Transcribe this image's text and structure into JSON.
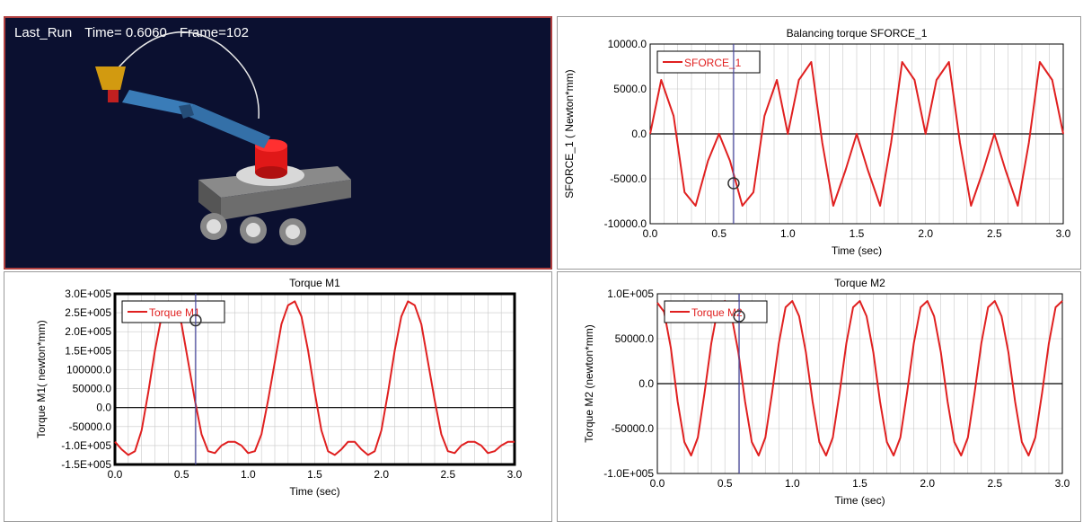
{
  "animation": {
    "run_name": "Last_Run",
    "time_text": "Time= 0.6060",
    "frame_text": "Frame=102",
    "background": "#0b1030"
  },
  "colors": {
    "series": "#e02020",
    "cursor": "#4a4aa0",
    "grid": "#c8c8c8"
  },
  "chart_data": [
    {
      "id": "sforce",
      "type": "line",
      "title": "Balancing torque  SFORCE_1",
      "xlabel": "Time (sec)",
      "ylabel": "SFORCE_1  ( Newton*mm)",
      "xlim": [
        0,
        3.0
      ],
      "ylim": [
        -10000,
        10000
      ],
      "xticks": [
        "0.0",
        "0.5",
        "1.0",
        "1.5",
        "2.0",
        "2.5",
        "3.0"
      ],
      "xtick_values": [
        0,
        0.5,
        1.0,
        1.5,
        2.0,
        2.5,
        3.0
      ],
      "yticks": [
        "10000.0",
        "5000.0",
        "0.0",
        "-5000.0",
        "-10000.0"
      ],
      "ytick_values": [
        10000,
        5000,
        0,
        -5000,
        -10000
      ],
      "legend": "SFORCE_1",
      "legend_position": "top-left",
      "grid": true,
      "cursor_x": 0.606,
      "cursor_y": -5500,
      "series": [
        {
          "name": "SFORCE_1",
          "x": [
            0.0,
            0.08,
            0.17,
            0.25,
            0.33,
            0.42,
            0.5,
            0.58,
            0.67,
            0.75,
            0.83,
            0.92,
            1.0,
            1.08,
            1.17,
            1.25,
            1.33,
            1.42,
            1.5,
            1.58,
            1.67,
            1.75,
            1.83,
            1.92,
            2.0,
            2.08,
            2.17,
            2.25,
            2.33,
            2.42,
            2.5,
            2.58,
            2.67,
            2.75,
            2.83,
            2.92,
            3.0
          ],
          "y": [
            0,
            6000,
            2000,
            -6500,
            -8000,
            -3000,
            0,
            -3000,
            -8000,
            -6500,
            2000,
            6000,
            0,
            6000,
            8000,
            -1000,
            -8000,
            -4000,
            0,
            -4000,
            -8000,
            -1000,
            8000,
            6000,
            0,
            6000,
            8000,
            -1000,
            -8000,
            -4000,
            0,
            -4000,
            -8000,
            -1000,
            8000,
            6000,
            0
          ]
        }
      ]
    },
    {
      "id": "m1",
      "type": "line",
      "title": "Torque M1",
      "xlabel": "Time (sec)",
      "ylabel": "Torque M1( newton*mm)",
      "xlim": [
        0,
        3.0
      ],
      "ylim": [
        -150000,
        300000
      ],
      "xticks": [
        "0.0",
        "0.5",
        "1.0",
        "1.5",
        "2.0",
        "2.5",
        "3.0"
      ],
      "xtick_values": [
        0,
        0.5,
        1.0,
        1.5,
        2.0,
        2.5,
        3.0
      ],
      "yticks": [
        "3.0E+005",
        "2.5E+005",
        "2.0E+005",
        "1.5E+005",
        "100000.0",
        "50000.0",
        "0.0",
        "-50000.0",
        "-1.0E+005",
        "-1.5E+005"
      ],
      "ytick_values": [
        300000,
        250000,
        200000,
        150000,
        100000,
        50000,
        0,
        -50000,
        -100000,
        -150000
      ],
      "legend": "Torque M1",
      "legend_position": "top-left",
      "grid": true,
      "cursor_x": 0.606,
      "cursor_y": 230000,
      "series": [
        {
          "name": "Torque M1",
          "x": [
            0.0,
            0.05,
            0.1,
            0.15,
            0.2,
            0.25,
            0.3,
            0.35,
            0.4,
            0.45,
            0.5,
            0.55,
            0.6,
            0.65,
            0.7,
            0.75,
            0.8,
            0.85,
            0.9,
            0.95,
            1.0,
            1.05,
            1.1,
            1.15,
            1.2,
            1.25,
            1.3,
            1.35,
            1.4,
            1.45,
            1.5,
            1.55,
            1.6,
            1.65,
            1.7,
            1.75,
            1.8,
            1.85,
            1.9,
            1.95,
            2.0,
            2.05,
            2.1,
            2.15,
            2.2,
            2.25,
            2.3,
            2.35,
            2.4,
            2.45,
            2.5,
            2.55,
            2.6,
            2.65,
            2.7,
            2.75,
            2.8,
            2.85,
            2.9,
            2.95,
            3.0
          ],
          "y": [
            -90000,
            -110000,
            -125000,
            -115000,
            -60000,
            40000,
            150000,
            240000,
            280000,
            270000,
            220000,
            120000,
            20000,
            -70000,
            -115000,
            -120000,
            -100000,
            -90000,
            -90000,
            -100000,
            -120000,
            -115000,
            -70000,
            20000,
            120000,
            220000,
            270000,
            280000,
            240000,
            150000,
            40000,
            -60000,
            -115000,
            -125000,
            -110000,
            -90000,
            -90000,
            -110000,
            -125000,
            -115000,
            -60000,
            40000,
            150000,
            240000,
            280000,
            270000,
            220000,
            120000,
            20000,
            -70000,
            -115000,
            -120000,
            -100000,
            -90000,
            -90000,
            -100000,
            -120000,
            -115000,
            -100000,
            -90000,
            -90000
          ]
        }
      ]
    },
    {
      "id": "m2",
      "type": "line",
      "title": "Torque M2",
      "xlabel": "Time (sec)",
      "ylabel": "Torque M2 (newton*mm)",
      "xlim": [
        0,
        3.0
      ],
      "ylim": [
        -100000,
        100000
      ],
      "xticks": [
        "0.0",
        "0.5",
        "1.0",
        "1.5",
        "2.0",
        "2.5",
        "3.0"
      ],
      "xtick_values": [
        0,
        0.5,
        1.0,
        1.5,
        2.0,
        2.5,
        3.0
      ],
      "yticks": [
        "1.0E+005",
        "50000.0",
        "0.0",
        "-50000.0",
        "-1.0E+005"
      ],
      "ytick_values": [
        100000,
        50000,
        0,
        -50000,
        -100000
      ],
      "legend": "Torque M2",
      "legend_position": "top-left",
      "grid": true,
      "cursor_x": 0.606,
      "cursor_y": 75000,
      "series": [
        {
          "name": "Torque M2",
          "x": [
            0.0,
            0.05,
            0.1,
            0.15,
            0.2,
            0.25,
            0.3,
            0.35,
            0.4,
            0.45,
            0.5,
            0.55,
            0.6,
            0.65,
            0.7,
            0.75,
            0.8,
            0.85,
            0.9,
            0.95,
            1.0,
            1.05,
            1.1,
            1.15,
            1.2,
            1.25,
            1.3,
            1.35,
            1.4,
            1.45,
            1.5,
            1.55,
            1.6,
            1.65,
            1.7,
            1.75,
            1.8,
            1.85,
            1.9,
            1.95,
            2.0,
            2.05,
            2.1,
            2.15,
            2.2,
            2.25,
            2.3,
            2.35,
            2.4,
            2.45,
            2.5,
            2.55,
            2.6,
            2.65,
            2.7,
            2.75,
            2.8,
            2.85,
            2.9,
            2.95,
            3.0
          ],
          "y": [
            90000,
            80000,
            40000,
            -20000,
            -65000,
            -80000,
            -60000,
            -10000,
            45000,
            85000,
            92000,
            75000,
            35000,
            -20000,
            -65000,
            -80000,
            -60000,
            -10000,
            45000,
            85000,
            92000,
            75000,
            35000,
            -20000,
            -65000,
            -80000,
            -60000,
            -10000,
            45000,
            85000,
            92000,
            75000,
            35000,
            -20000,
            -65000,
            -80000,
            -60000,
            -10000,
            45000,
            85000,
            92000,
            75000,
            35000,
            -20000,
            -65000,
            -80000,
            -60000,
            -10000,
            45000,
            85000,
            92000,
            75000,
            35000,
            -20000,
            -65000,
            -80000,
            -60000,
            -10000,
            45000,
            85000,
            92000
          ]
        }
      ]
    }
  ]
}
